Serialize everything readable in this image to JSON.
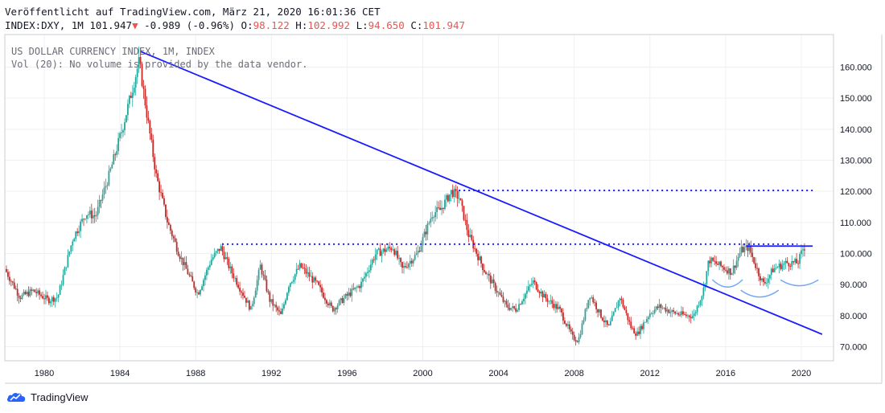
{
  "header": {
    "published": "Veröffentlicht auf TradingView.com, März 21, 2020 16:01:36 CET",
    "symbol": "INDEX:DXY, 1M",
    "last": "101.947",
    "change_arrow": "▼",
    "change": "-0.989 (-0.96%)",
    "o_label": "O:",
    "o_value": "98.122",
    "h_label": "H:",
    "h_value": "102.992",
    "l_label": "L:",
    "l_value": "94.650",
    "c_label": "C:",
    "c_value": "101.947"
  },
  "legend": {
    "title": "US DOLLAR CURRENCY INDEX, 1M, INDEX",
    "volume_note": "Vol (20): No volume is provided by the data vendor."
  },
  "footer": {
    "brand": "TradingView",
    "logo_icon": "tradingview-cloud-icon"
  },
  "colors": {
    "up": "#26a69a",
    "down": "#c62828",
    "trendline": "#1a1aff",
    "arc": "#6fa8f5",
    "grid": "#eef0f3"
  },
  "chart_data": {
    "type": "candlestick",
    "x_ticks": [
      "1980",
      "1984",
      "1988",
      "1992",
      "1996",
      "2000",
      "2004",
      "2008",
      "2012",
      "2016",
      "2020"
    ],
    "y_ticks": [
      "70.000",
      "80.000",
      "90.000",
      "100.000",
      "110.000",
      "120.000",
      "130.000",
      "140.000",
      "150.000",
      "160.000"
    ],
    "xlim": [
      1977.8,
      2021.8
    ],
    "ylim": [
      66,
      170
    ],
    "price_path": [
      [
        1978.0,
        95
      ],
      [
        1978.8,
        86
      ],
      [
        1979.5,
        88
      ],
      [
        1980.3,
        85
      ],
      [
        1980.8,
        86
      ],
      [
        1981.6,
        105
      ],
      [
        1982.3,
        113
      ],
      [
        1982.8,
        112
      ],
      [
        1983.5,
        125
      ],
      [
        1984.2,
        140
      ],
      [
        1984.7,
        152
      ],
      [
        1985.1,
        162
      ],
      [
        1985.5,
        145
      ],
      [
        1986.0,
        125
      ],
      [
        1986.6,
        110
      ],
      [
        1987.2,
        100
      ],
      [
        1987.8,
        92
      ],
      [
        1988.2,
        87
      ],
      [
        1988.9,
        98
      ],
      [
        1989.4,
        102
      ],
      [
        1989.9,
        95
      ],
      [
        1990.5,
        88
      ],
      [
        1991.0,
        82
      ],
      [
        1991.5,
        96
      ],
      [
        1992.0,
        85
      ],
      [
        1992.6,
        80
      ],
      [
        1993.0,
        90
      ],
      [
        1993.6,
        96
      ],
      [
        1994.5,
        90
      ],
      [
        1995.3,
        82
      ],
      [
        1996.0,
        86
      ],
      [
        1996.8,
        90
      ],
      [
        1997.6,
        100
      ],
      [
        1998.5,
        102
      ],
      [
        1999.0,
        95
      ],
      [
        1999.8,
        100
      ],
      [
        2000.6,
        113
      ],
      [
        2001.0,
        114
      ],
      [
        2001.6,
        120
      ],
      [
        2002.0,
        118
      ],
      [
        2002.5,
        106
      ],
      [
        2003.3,
        95
      ],
      [
        2004.0,
        88
      ],
      [
        2004.5,
        83
      ],
      [
        2005.0,
        82
      ],
      [
        2005.9,
        91
      ],
      [
        2006.5,
        86
      ],
      [
        2007.3,
        82
      ],
      [
        2008.0,
        73
      ],
      [
        2008.3,
        72
      ],
      [
        2008.9,
        87
      ],
      [
        2009.5,
        80
      ],
      [
        2009.9,
        76
      ],
      [
        2010.5,
        86
      ],
      [
        2011.1,
        76
      ],
      [
        2011.4,
        74
      ],
      [
        2012.1,
        81
      ],
      [
        2012.6,
        83
      ],
      [
        2013.3,
        81
      ],
      [
        2014.0,
        80
      ],
      [
        2014.4,
        80
      ],
      [
        2014.9,
        88
      ],
      [
        2015.2,
        98
      ],
      [
        2015.8,
        96
      ],
      [
        2016.4,
        94
      ],
      [
        2016.9,
        101
      ],
      [
        2017.3,
        102
      ],
      [
        2017.8,
        94
      ],
      [
        2018.1,
        90
      ],
      [
        2018.6,
        95
      ],
      [
        2019.3,
        97
      ],
      [
        2019.9,
        97
      ],
      [
        2020.2,
        102
      ]
    ],
    "trendline": [
      [
        1985.1,
        165
      ],
      [
        2021.1,
        74
      ]
    ],
    "horizontal_lines": [
      {
        "y": 120.3,
        "x": [
          2001.9,
          2020.6
        ]
      },
      {
        "y": 103.0,
        "x": [
          1989.4,
          2019.8
        ]
      },
      {
        "y": 102.4,
        "x": [
          2017.1,
          2020.6
        ]
      }
    ],
    "arcs": [
      {
        "x": [
          2015.3,
          2016.9
        ],
        "y_edge": 91.6,
        "y_bottom": 89.2
      },
      {
        "x": [
          2016.8,
          2018.8
        ],
        "y_edge": 88.2,
        "y_bottom": 86.0
      },
      {
        "x": [
          2018.9,
          2020.9
        ],
        "y_edge": 91.5,
        "y_bottom": 89.6
      }
    ]
  }
}
